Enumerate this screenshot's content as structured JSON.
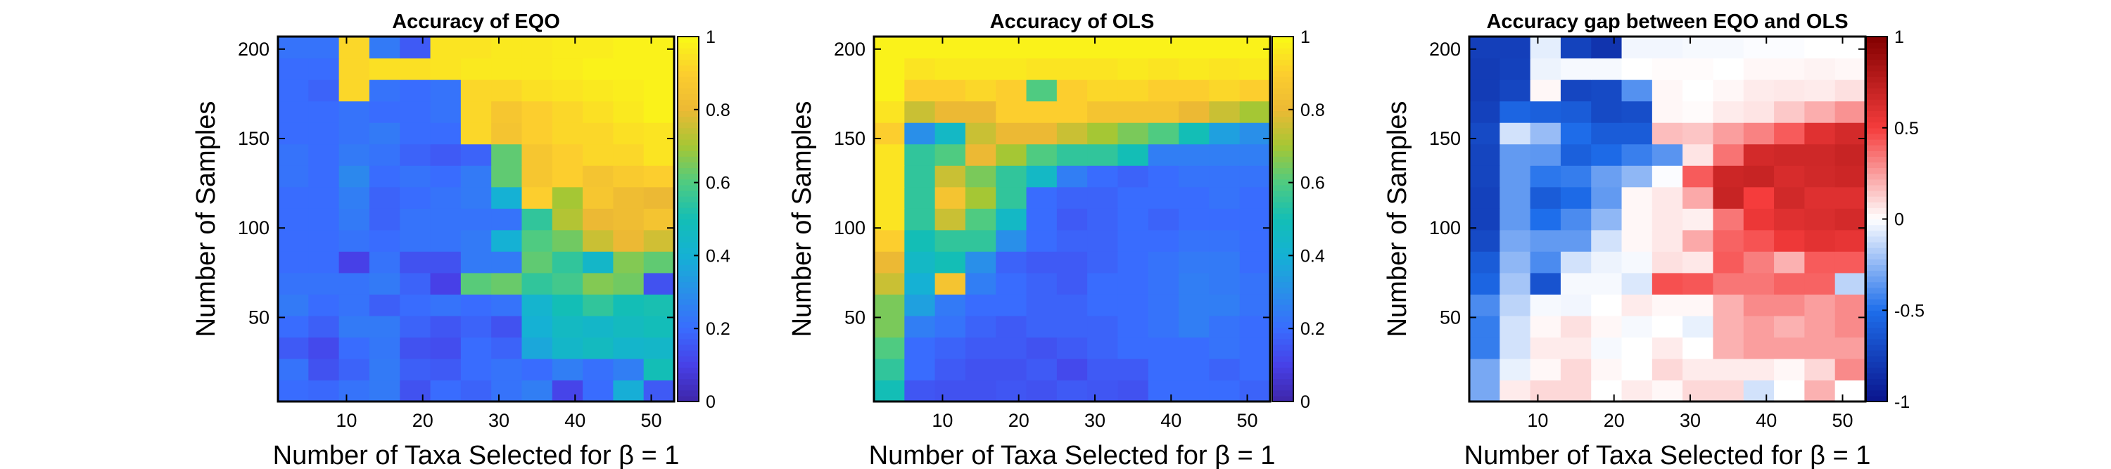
{
  "chart_data": [
    {
      "type": "heatmap",
      "title": "Accuracy of EQO",
      "xlabel": "Number of Taxa Selected for β = 1",
      "ylabel": "Number of Samples",
      "x": [
        3,
        7,
        11,
        15,
        19,
        23,
        27,
        31,
        35,
        39,
        43,
        47,
        51
      ],
      "y": [
        9,
        21,
        33,
        45,
        57,
        69,
        81,
        93,
        105,
        117,
        129,
        141,
        153,
        165,
        177,
        189,
        201
      ],
      "xlim": [
        1,
        53
      ],
      "ylim": [
        3,
        207
      ],
      "xticks": [
        "10",
        "20",
        "30",
        "40",
        "50"
      ],
      "yticks": [
        "50",
        "100",
        "150",
        "200"
      ],
      "colormap": "parula",
      "clim": [
        0,
        1
      ],
      "colorbar_ticks": [
        "0",
        "0.2",
        "0.4",
        "0.6",
        "0.8",
        "1"
      ],
      "values": [
        [
          0.2,
          0.19,
          0.22,
          0.24,
          0.14,
          0.2,
          0.18,
          0.22,
          0.25,
          0.11,
          0.2,
          0.39,
          0.16
        ],
        [
          0.22,
          0.14,
          0.18,
          0.24,
          0.17,
          0.16,
          0.2,
          0.22,
          0.2,
          0.25,
          0.21,
          0.25,
          0.5
        ],
        [
          0.16,
          0.12,
          0.2,
          0.23,
          0.14,
          0.13,
          0.2,
          0.18,
          0.37,
          0.44,
          0.47,
          0.43,
          0.44
        ],
        [
          0.2,
          0.17,
          0.24,
          0.24,
          0.18,
          0.15,
          0.18,
          0.14,
          0.4,
          0.46,
          0.44,
          0.47,
          0.49
        ],
        [
          0.24,
          0.2,
          0.22,
          0.17,
          0.2,
          0.22,
          0.2,
          0.22,
          0.42,
          0.5,
          0.55,
          0.5,
          0.51
        ],
        [
          0.22,
          0.22,
          0.22,
          0.24,
          0.18,
          0.1,
          0.61,
          0.63,
          0.55,
          0.58,
          0.66,
          0.64,
          0.14
        ],
        [
          0.2,
          0.2,
          0.1,
          0.22,
          0.14,
          0.14,
          0.24,
          0.24,
          0.62,
          0.55,
          0.44,
          0.66,
          0.62
        ],
        [
          0.2,
          0.2,
          0.22,
          0.2,
          0.22,
          0.22,
          0.24,
          0.4,
          0.6,
          0.64,
          0.75,
          0.8,
          0.76
        ],
        [
          0.2,
          0.2,
          0.24,
          0.18,
          0.22,
          0.22,
          0.22,
          0.22,
          0.55,
          0.72,
          0.8,
          0.82,
          0.85
        ],
        [
          0.2,
          0.2,
          0.25,
          0.18,
          0.2,
          0.22,
          0.24,
          0.4,
          0.9,
          0.7,
          0.86,
          0.82,
          0.8
        ],
        [
          0.22,
          0.2,
          0.28,
          0.2,
          0.22,
          0.2,
          0.24,
          0.62,
          0.86,
          0.9,
          0.85,
          0.88,
          0.9
        ],
        [
          0.22,
          0.2,
          0.24,
          0.22,
          0.18,
          0.16,
          0.18,
          0.62,
          0.86,
          0.9,
          0.92,
          0.92,
          0.95
        ],
        [
          0.2,
          0.2,
          0.22,
          0.24,
          0.2,
          0.2,
          0.92,
          0.85,
          0.9,
          0.92,
          0.92,
          0.94,
          0.95
        ],
        [
          0.2,
          0.2,
          0.22,
          0.2,
          0.2,
          0.22,
          0.92,
          0.86,
          0.9,
          0.92,
          0.94,
          0.96,
          0.98
        ],
        [
          0.2,
          0.18,
          0.92,
          0.22,
          0.2,
          0.22,
          0.92,
          0.92,
          0.94,
          0.95,
          0.96,
          0.97,
          0.98
        ],
        [
          0.2,
          0.2,
          0.92,
          0.94,
          0.94,
          0.95,
          0.96,
          0.96,
          0.96,
          0.97,
          0.98,
          0.98,
          0.98
        ],
        [
          0.22,
          0.22,
          0.92,
          0.24,
          0.16,
          0.95,
          0.95,
          0.96,
          0.96,
          0.97,
          0.97,
          0.98,
          0.98
        ]
      ]
    },
    {
      "type": "heatmap",
      "title": "Accuracy of OLS",
      "xlabel": "Number of Taxa Selected for β = 1",
      "ylabel": "Number of Samples",
      "x": [
        3,
        7,
        11,
        15,
        19,
        23,
        27,
        31,
        35,
        39,
        43,
        47,
        51
      ],
      "y": [
        9,
        21,
        33,
        45,
        57,
        69,
        81,
        93,
        105,
        117,
        129,
        141,
        153,
        165,
        177,
        189,
        201
      ],
      "xlim": [
        1,
        53
      ],
      "ylim": [
        3,
        207
      ],
      "xticks": [
        "10",
        "20",
        "30",
        "40",
        "50"
      ],
      "yticks": [
        "50",
        "100",
        "150",
        "200"
      ],
      "colormap": "parula",
      "clim": [
        0,
        1
      ],
      "colorbar_ticks": [
        "0",
        "0.2",
        "0.4",
        "0.6",
        "0.8",
        "1"
      ],
      "values": [
        [
          0.5,
          0.15,
          0.14,
          0.14,
          0.15,
          0.14,
          0.16,
          0.15,
          0.14,
          0.2,
          0.2,
          0.2,
          0.18
        ],
        [
          0.55,
          0.2,
          0.16,
          0.14,
          0.14,
          0.16,
          0.12,
          0.16,
          0.16,
          0.2,
          0.2,
          0.18,
          0.2
        ],
        [
          0.6,
          0.2,
          0.18,
          0.16,
          0.16,
          0.14,
          0.16,
          0.18,
          0.2,
          0.2,
          0.2,
          0.22,
          0.2
        ],
        [
          0.65,
          0.25,
          0.22,
          0.18,
          0.16,
          0.18,
          0.18,
          0.18,
          0.2,
          0.22,
          0.25,
          0.22,
          0.2
        ],
        [
          0.65,
          0.35,
          0.24,
          0.2,
          0.2,
          0.18,
          0.18,
          0.2,
          0.2,
          0.22,
          0.25,
          0.25,
          0.22
        ],
        [
          0.75,
          0.4,
          0.85,
          0.25,
          0.2,
          0.18,
          0.16,
          0.2,
          0.2,
          0.22,
          0.25,
          0.24,
          0.22
        ],
        [
          0.8,
          0.45,
          0.5,
          0.3,
          0.18,
          0.16,
          0.16,
          0.18,
          0.2,
          0.22,
          0.24,
          0.24,
          0.2
        ],
        [
          0.9,
          0.5,
          0.55,
          0.55,
          0.3,
          0.2,
          0.18,
          0.18,
          0.2,
          0.2,
          0.22,
          0.22,
          0.2
        ],
        [
          0.95,
          0.55,
          0.75,
          0.6,
          0.45,
          0.2,
          0.16,
          0.18,
          0.2,
          0.18,
          0.2,
          0.2,
          0.2
        ],
        [
          0.95,
          0.55,
          0.85,
          0.7,
          0.55,
          0.2,
          0.18,
          0.18,
          0.2,
          0.2,
          0.2,
          0.22,
          0.2
        ],
        [
          0.95,
          0.55,
          0.75,
          0.65,
          0.55,
          0.45,
          0.25,
          0.2,
          0.18,
          0.2,
          0.22,
          0.22,
          0.22
        ],
        [
          0.95,
          0.55,
          0.6,
          0.8,
          0.7,
          0.6,
          0.55,
          0.55,
          0.5,
          0.25,
          0.25,
          0.25,
          0.25
        ],
        [
          0.9,
          0.3,
          0.45,
          0.75,
          0.8,
          0.8,
          0.75,
          0.7,
          0.65,
          0.6,
          0.5,
          0.35,
          0.3
        ],
        [
          0.95,
          0.75,
          0.8,
          0.8,
          0.9,
          0.9,
          0.9,
          0.85,
          0.85,
          0.85,
          0.8,
          0.75,
          0.7
        ],
        [
          0.98,
          0.9,
          0.9,
          0.92,
          0.9,
          0.6,
          0.9,
          0.92,
          0.92,
          0.9,
          0.9,
          0.92,
          0.9
        ],
        [
          0.98,
          0.95,
          0.96,
          0.96,
          0.96,
          0.95,
          0.95,
          0.95,
          0.96,
          0.95,
          0.96,
          0.95,
          0.96
        ],
        [
          0.98,
          0.98,
          0.98,
          0.98,
          0.98,
          0.98,
          0.98,
          0.98,
          0.98,
          0.98,
          0.98,
          0.98,
          0.98
        ]
      ]
    },
    {
      "type": "heatmap",
      "title": "Accuracy gap between EQO and OLS",
      "xlabel": "Number of Taxa Selected for β = 1",
      "ylabel": "Number of Samples",
      "x": [
        3,
        7,
        11,
        15,
        19,
        23,
        27,
        31,
        35,
        39,
        43,
        47,
        51
      ],
      "y": [
        9,
        21,
        33,
        45,
        57,
        69,
        81,
        93,
        105,
        117,
        129,
        141,
        153,
        165,
        177,
        189,
        201
      ],
      "xlim": [
        1,
        53
      ],
      "ylim": [
        3,
        207
      ],
      "xticks": [
        "10",
        "20",
        "30",
        "40",
        "50"
      ],
      "yticks": [
        "50",
        "100",
        "150",
        "200"
      ],
      "colormap": "blue-white-red",
      "clim": [
        -1,
        1
      ],
      "colorbar_ticks": [
        "-1",
        "-0.5",
        "0",
        "0.5",
        "1"
      ],
      "values": [
        [
          -0.3,
          0.05,
          0.1,
          0.1,
          0.0,
          0.05,
          0.02,
          0.1,
          0.1,
          -0.1,
          0.0,
          0.2,
          0.0
        ],
        [
          -0.3,
          -0.05,
          0.02,
          0.1,
          0.02,
          0.0,
          0.1,
          0.05,
          0.05,
          0.05,
          0.02,
          0.1,
          0.3
        ],
        [
          -0.45,
          -0.1,
          0.05,
          0.05,
          -0.02,
          0.0,
          0.05,
          0.0,
          0.2,
          0.25,
          0.25,
          0.25,
          0.25
        ],
        [
          -0.45,
          -0.1,
          0.02,
          0.08,
          0.02,
          -0.02,
          0.0,
          -0.05,
          0.2,
          0.25,
          0.2,
          0.25,
          0.3
        ],
        [
          -0.4,
          -0.15,
          -0.02,
          -0.03,
          0.0,
          0.05,
          0.02,
          0.02,
          0.2,
          0.3,
          0.3,
          0.25,
          0.3
        ],
        [
          -0.55,
          -0.2,
          -0.65,
          -0.02,
          -0.02,
          -0.08,
          0.45,
          0.43,
          0.35,
          0.35,
          0.4,
          0.4,
          -0.15
        ],
        [
          -0.6,
          -0.25,
          -0.4,
          -0.1,
          -0.04,
          -0.02,
          0.08,
          0.06,
          0.42,
          0.33,
          0.2,
          0.42,
          0.42
        ],
        [
          -0.7,
          -0.3,
          -0.35,
          -0.35,
          -0.1,
          0.02,
          0.06,
          0.22,
          0.4,
          0.44,
          0.53,
          0.58,
          0.56
        ],
        [
          -0.75,
          -0.35,
          -0.5,
          -0.4,
          -0.25,
          0.02,
          0.06,
          0.04,
          0.35,
          0.54,
          0.6,
          0.62,
          0.65
        ],
        [
          -0.75,
          -0.35,
          -0.6,
          -0.52,
          -0.35,
          0.02,
          0.06,
          0.22,
          0.7,
          0.5,
          0.66,
          0.6,
          0.6
        ],
        [
          -0.73,
          -0.35,
          -0.47,
          -0.45,
          -0.33,
          -0.25,
          -0.01,
          0.42,
          0.68,
          0.7,
          0.63,
          0.66,
          0.68
        ],
        [
          -0.73,
          -0.35,
          -0.36,
          -0.58,
          -0.52,
          -0.44,
          -0.37,
          0.07,
          0.36,
          0.65,
          0.67,
          0.67,
          0.7
        ],
        [
          -0.7,
          -0.1,
          -0.23,
          -0.51,
          -0.6,
          -0.6,
          0.17,
          0.15,
          0.25,
          0.32,
          0.42,
          0.59,
          0.65
        ],
        [
          -0.75,
          -0.55,
          -0.58,
          -0.6,
          -0.7,
          -0.68,
          0.02,
          0.01,
          0.05,
          0.07,
          0.14,
          0.21,
          0.28
        ],
        [
          -0.78,
          -0.72,
          0.02,
          -0.72,
          -0.7,
          -0.38,
          0.02,
          0.0,
          0.02,
          0.05,
          0.06,
          0.05,
          0.08
        ],
        [
          -0.78,
          -0.75,
          -0.04,
          -0.02,
          -0.02,
          0.0,
          0.01,
          0.01,
          0.0,
          0.02,
          0.02,
          0.03,
          0.02
        ],
        [
          -0.76,
          -0.76,
          -0.06,
          -0.74,
          -0.82,
          -0.03,
          -0.03,
          -0.02,
          -0.02,
          -0.01,
          -0.01,
          0.0,
          0.0
        ]
      ]
    }
  ]
}
